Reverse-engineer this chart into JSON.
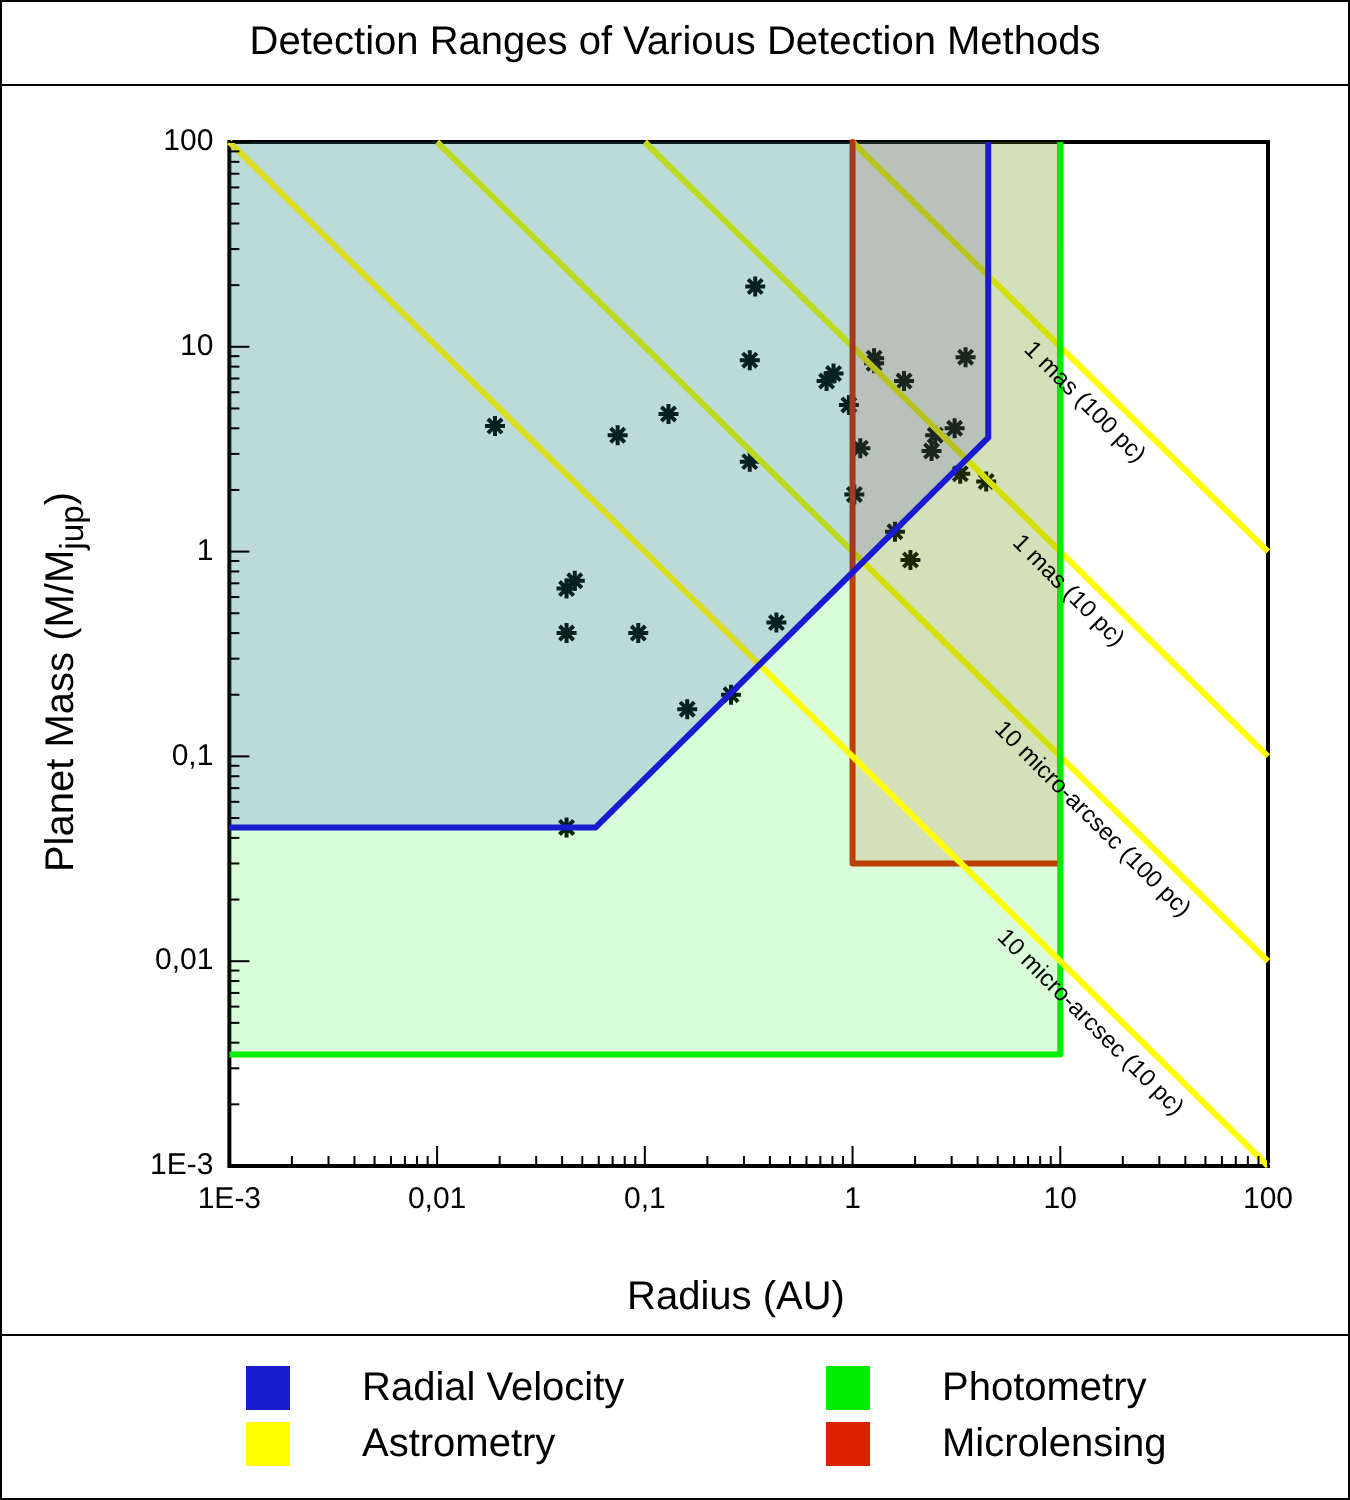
{
  "chart_data": {
    "type": "area",
    "title": "Detection Ranges of Various Detection Methods",
    "xlabel": "Radius (AU)",
    "ylabel": "Planet Mass (M/M$_{jup}$)",
    "log": "xy",
    "legend": "bottom",
    "xlim": [
      0.001,
      100
    ],
    "ylim": [
      0.001,
      100
    ],
    "xticks": [
      {
        "value": 0.001,
        "label": "1E-3"
      },
      {
        "value": 0.002,
        "label": null
      },
      {
        "value": 0.003,
        "label": null
      },
      {
        "value": 0.004,
        "label": null
      },
      {
        "value": 0.005,
        "label": null
      },
      {
        "value": 0.006,
        "label": null
      },
      {
        "value": 0.007,
        "label": null
      },
      {
        "value": 0.008,
        "label": null
      },
      {
        "value": 0.009,
        "label": null
      },
      {
        "value": 0.01,
        "label": "0,01"
      },
      {
        "value": 0.02,
        "label": null
      },
      {
        "value": 0.03,
        "label": null
      },
      {
        "value": 0.04,
        "label": null
      },
      {
        "value": 0.05,
        "label": null
      },
      {
        "value": 0.06,
        "label": null
      },
      {
        "value": 0.07,
        "label": null
      },
      {
        "value": 0.08,
        "label": null
      },
      {
        "value": 0.09,
        "label": null
      },
      {
        "value": 0.1,
        "label": "0,1"
      },
      {
        "value": 0.2,
        "label": null
      },
      {
        "value": 0.3,
        "label": null
      },
      {
        "value": 0.4,
        "label": null
      },
      {
        "value": 0.5,
        "label": null
      },
      {
        "value": 0.6,
        "label": null
      },
      {
        "value": 0.7,
        "label": null
      },
      {
        "value": 0.8,
        "label": null
      },
      {
        "value": 0.9,
        "label": null
      },
      1,
      {
        "value": 2,
        "label": null
      },
      {
        "value": 3,
        "label": null
      },
      {
        "value": 4,
        "label": null
      },
      {
        "value": 5,
        "label": null
      },
      {
        "value": 6,
        "label": null
      },
      {
        "value": 7,
        "label": null
      },
      {
        "value": 8,
        "label": null
      },
      {
        "value": 9,
        "label": null
      },
      10,
      {
        "value": 20,
        "label": null
      },
      {
        "value": 30,
        "label": null
      },
      {
        "value": 40,
        "label": null
      },
      {
        "value": 50,
        "label": null
      },
      {
        "value": 60,
        "label": null
      },
      {
        "value": 70,
        "label": null
      },
      {
        "value": 80,
        "label": null
      },
      {
        "value": 90,
        "label": null
      },
      100
    ],
    "yticks": [
      {
        "value": 0.001,
        "label": "1E-3"
      },
      {
        "value": 0.002,
        "label": null
      },
      {
        "value": 0.003,
        "label": null
      },
      {
        "value": 0.004,
        "label": null
      },
      {
        "value": 0.005,
        "label": null
      },
      {
        "value": 0.006,
        "label": null
      },
      {
        "value": 0.007,
        "label": null
      },
      {
        "value": 0.008,
        "label": null
      },
      {
        "value": 0.009,
        "label": null
      },
      {
        "value": 0.01,
        "label": "0,01"
      },
      {
        "value": 0.02,
        "label": null
      },
      {
        "value": 0.03,
        "label": null
      },
      {
        "value": 0.04,
        "label": null
      },
      {
        "value": 0.05,
        "label": null
      },
      {
        "value": 0.06,
        "label": null
      },
      {
        "value": 0.07,
        "label": null
      },
      {
        "value": 0.08,
        "label": null
      },
      {
        "value": 0.09,
        "label": null
      },
      {
        "value": 0.1,
        "label": "0,1"
      },
      {
        "value": 0.2,
        "label": null
      },
      {
        "value": 0.3,
        "label": null
      },
      {
        "value": 0.4,
        "label": null
      },
      {
        "value": 0.5,
        "label": null
      },
      {
        "value": 0.6,
        "label": null
      },
      {
        "value": 0.7,
        "label": null
      },
      {
        "value": 0.8,
        "label": null
      },
      {
        "value": 0.9,
        "label": null
      },
      1,
      {
        "value": 2,
        "label": null
      },
      {
        "value": 3,
        "label": null
      },
      {
        "value": 4,
        "label": null
      },
      {
        "value": 5,
        "label": null
      },
      {
        "value": 6,
        "label": null
      },
      {
        "value": 7,
        "label": null
      },
      {
        "value": 8,
        "label": null
      },
      {
        "value": 9,
        "label": null
      },
      10,
      {
        "value": 20,
        "label": null
      },
      {
        "value": 30,
        "label": null
      },
      {
        "value": 40,
        "label": null
      },
      {
        "value": 50,
        "label": null
      },
      {
        "value": 60,
        "label": null
      },
      {
        "value": 70,
        "label": null
      },
      {
        "value": 80,
        "label": null
      },
      {
        "value": 90,
        "label": null
      },
      100
    ],
    "series": [
      {
        "name": "Radial Velocity",
        "color": "#1a1ad0",
        "x": [
          0.001,
          0.001,
          0.058,
          4.5,
          4.5
        ],
        "values": [
          100,
          0.045,
          0.045,
          3.6,
          100
        ]
      },
      {
        "name": "Astrometry",
        "type": "line",
        "color": "#ffff00",
        "x": [
          0.001,
          100
        ],
        "values": [
          100,
          0.001
        ]
      },
      {
        "name": "Photometry",
        "color": "#00ee00",
        "x": [
          0.001,
          0.001,
          10,
          10
        ],
        "values": [
          100,
          0.0035,
          0.0035,
          100
        ]
      },
      {
        "name": "Microlensing",
        "color": "#dd2200",
        "x": [
          1,
          1,
          10,
          10
        ],
        "values": [
          100,
          0.03,
          0.03,
          100
        ]
      },
      {
        "type": "line",
        "color": "#ffff00",
        "x": [
          0.01,
          100
        ],
        "values": [
          100,
          0.01
        ]
      },
      {
        "type": "line",
        "color": "#ffff00",
        "x": [
          0.1,
          100
        ],
        "values": [
          100,
          0.1
        ]
      },
      {
        "type": "line",
        "color": "#ffff00",
        "x": [
          1,
          100
        ],
        "values": [
          100,
          1
        ]
      },
      {
        "type": "scatter",
        "color": "#000000",
        "marker": "cross",
        "x": [
          0.34,
          0.32,
          0.019,
          0.074,
          0.13,
          0.32,
          0.75,
          0.81,
          0.96,
          1.27,
          1.27,
          1.77,
          3.5,
          1.09,
          2.5,
          3.1,
          2.4,
          3.3,
          4.4,
          1.02,
          1.6,
          1.9,
          0.042,
          0.046,
          0.042,
          0.093,
          0.43,
          0.26,
          0.16,
          0.042
        ],
        "values": [
          19.7,
          8.6,
          4.1,
          3.7,
          4.7,
          2.75,
          6.8,
          7.4,
          5.2,
          8.8,
          8.3,
          6.8,
          8.9,
          3.2,
          3.7,
          4.0,
          3.1,
          2.4,
          2.2,
          1.9,
          1.25,
          0.91,
          0.66,
          0.72,
          0.4,
          0.4,
          0.45,
          0.2,
          0.17,
          0.045
        ]
      }
    ],
    "annotations": [
      {
        "text": "1 mas (100 pc)",
        "x": 15.6,
        "y": 6.4
      },
      {
        "text": "1 mas (10 pc)",
        "x": 13,
        "y": 0.77
      },
      {
        "text": "10 micro-arcsec (100 pc)",
        "x": 17,
        "y": 0.059
      },
      {
        "text": "10 micro-arcsec (10 pc)",
        "x": 16.6,
        "y": 0.006
      }
    ]
  }
}
